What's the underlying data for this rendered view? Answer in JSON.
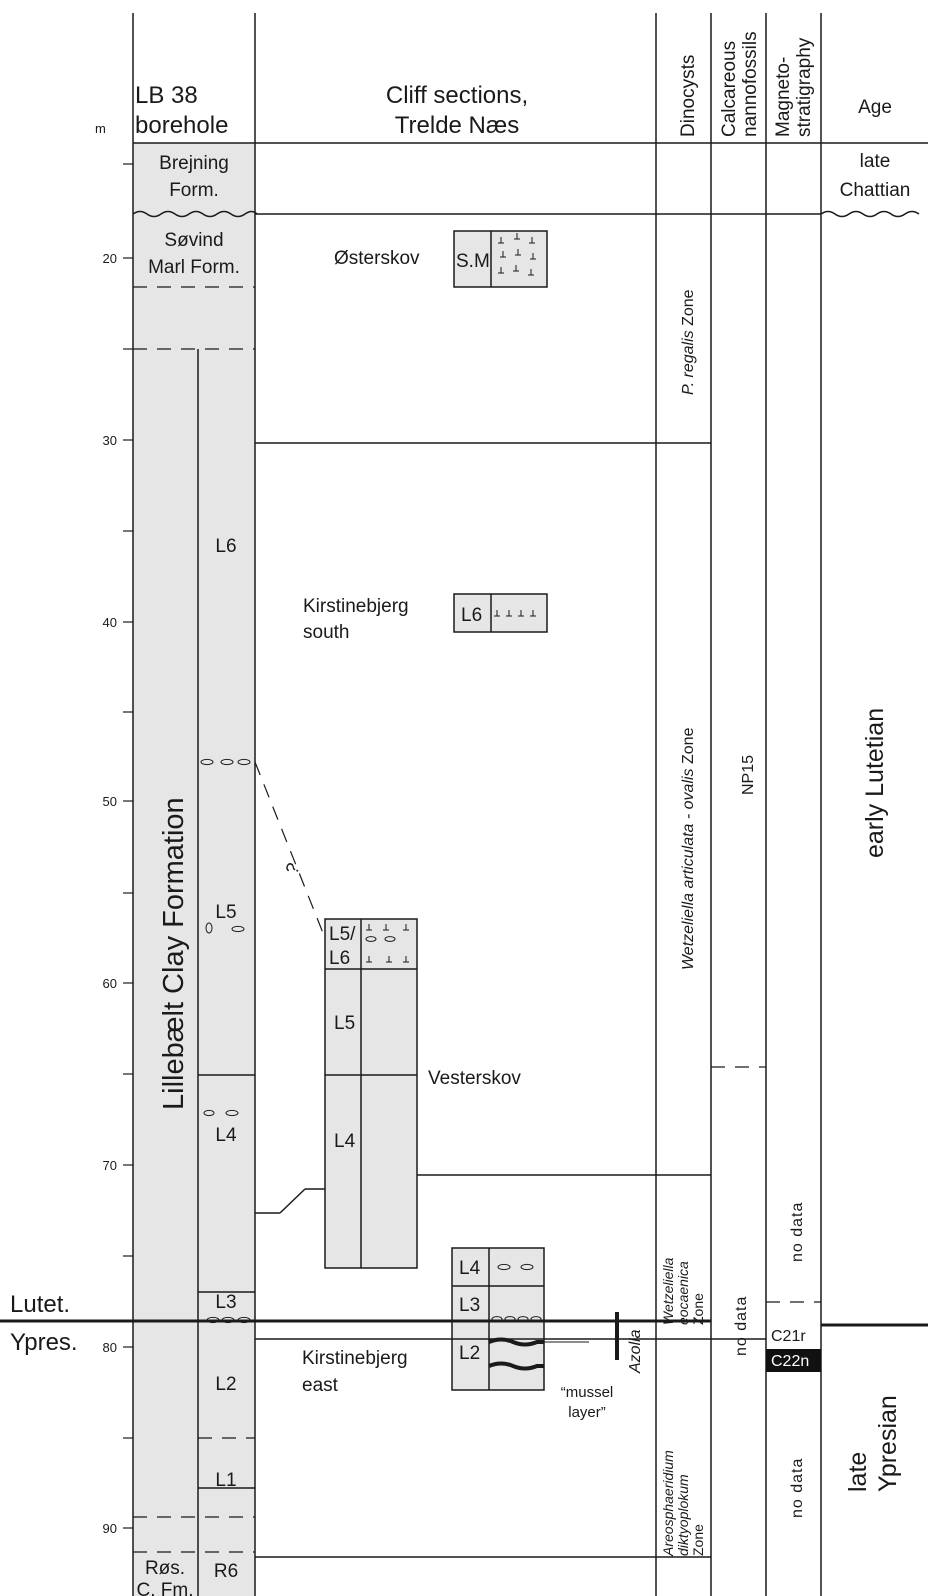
{
  "headers": {
    "depth_unit": "m",
    "borehole": [
      "LB 38",
      "borehole"
    ],
    "cliff": [
      "Cliff sections,",
      "Trelde Næs"
    ],
    "dinocysts": "Dinocysts",
    "nannofossils": [
      "Calcareous",
      "nannofossils"
    ],
    "magneto": [
      "Magneto-",
      "stratigraphy"
    ],
    "age": "Age"
  },
  "depth_ticks": [
    "20",
    "30",
    "40",
    "50",
    "60",
    "70",
    "80",
    "90"
  ],
  "borehole": {
    "brejning": [
      "Brejning",
      "Form."
    ],
    "sovind": [
      "Søvind",
      "Marl Form."
    ],
    "lillebaelt": "Lillebælt Clay Formation",
    "units": [
      "L6",
      "L5",
      "L4",
      "L3",
      "L2",
      "L1",
      "R6"
    ],
    "rosnaes": [
      "Røs.",
      "C. Fm."
    ]
  },
  "cliffs": {
    "osterskov": "Østerskov",
    "sm": "S.M",
    "kirstinebjerg_south": [
      "Kirstinebjerg",
      "south"
    ],
    "l6": "L6",
    "vesterskov": "Vesterskov",
    "vesterskov_units": [
      "L5/",
      "L6",
      "L5",
      "L4"
    ],
    "question": "?",
    "east_units": [
      "L4",
      "L3",
      "L2"
    ],
    "kirstinebjerg_east": [
      "Kirstinebjerg",
      "east"
    ],
    "mussel_layer": [
      "“mussel",
      "layer”"
    ],
    "azolla": "Azolla"
  },
  "dinocysts": {
    "regalis_italic": "P. regalis",
    "regalis_plain": " Zone",
    "wetzeliella_italic": "Wetzeliella articulata - ovalis",
    "wetzeliella_plain": " Zone",
    "eocaenica": [
      "Wetzeliella",
      "eocaenica",
      "Zone"
    ],
    "areosphaeridium": [
      "Areosphaeridium",
      "diktyoplokum",
      "Zone"
    ]
  },
  "nannofossils": {
    "np15": "NP15",
    "no_data": "no data"
  },
  "magneto": {
    "no_data_upper": "no data",
    "c21r": "C21r",
    "c22n": "C22n",
    "no_data_lower": "no data"
  },
  "age": {
    "late_chattian": [
      "late",
      "Chattian"
    ],
    "early_lutetian": "early  Lutetian",
    "late_ypresian": [
      "late",
      "Ypresian"
    ]
  },
  "stage_boundary": {
    "upper": "Lutet.",
    "lower": "Ypres."
  },
  "colors": {
    "fill": "#e6e6e6",
    "line": "#1a1a1a",
    "c22n_fill": "#111111",
    "c22n_text": "#ffffff"
  }
}
